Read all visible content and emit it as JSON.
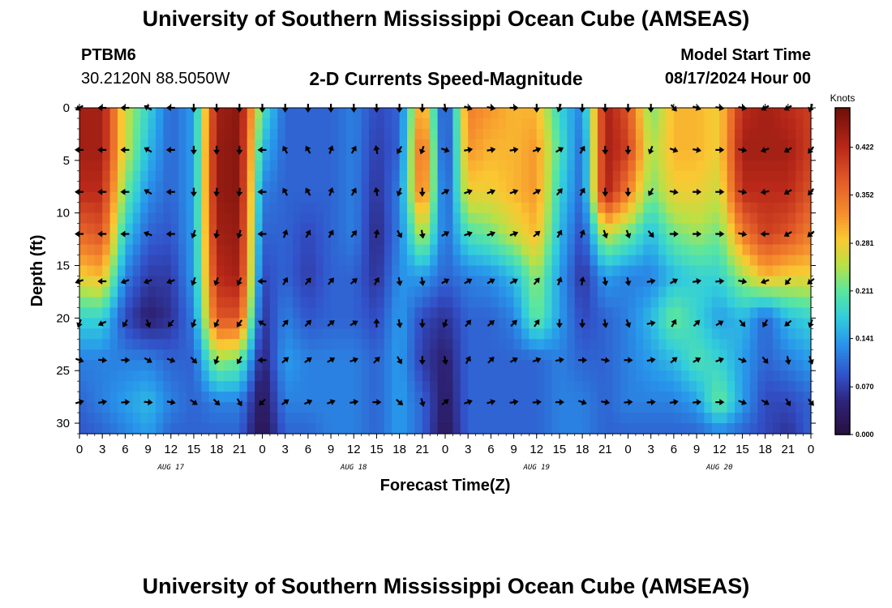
{
  "header": {
    "title": "University of Southern Mississippi Ocean Cube (AMSEAS)",
    "station_id": "PTBM6",
    "coordinates": "30.2120N  88.5050W",
    "chart_title": "2-D Currents Speed-Magnitude",
    "model_start_label": "Model Start Time",
    "model_start_value": "08/17/2024 Hour 00"
  },
  "footer": {
    "title": "University of Southern Mississippi Ocean Cube (AMSEAS)"
  },
  "chart_data": {
    "type": "heatmap",
    "title": "2-D Currents Speed-Magnitude",
    "xlabel": "Forecast Time(Z)",
    "ylabel": "Depth (ft)",
    "x_range_hours": [
      0,
      96
    ],
    "xlim": [
      0,
      96
    ],
    "ylim": [
      0,
      31
    ],
    "x_ticks_hours": [
      0,
      3,
      6,
      9,
      12,
      15,
      18,
      21,
      24,
      27,
      30,
      33,
      36,
      39,
      42,
      45,
      48,
      51,
      54,
      57,
      60,
      63,
      66,
      69,
      72,
      75,
      78,
      81,
      84,
      87,
      90,
      93,
      96
    ],
    "x_tick_labels": [
      "0",
      "3",
      "6",
      "9",
      "12",
      "15",
      "18",
      "21",
      "0",
      "3",
      "6",
      "9",
      "12",
      "15",
      "18",
      "21",
      "0",
      "3",
      "6",
      "9",
      "12",
      "15",
      "18",
      "21",
      "0",
      "3",
      "6",
      "9",
      "12",
      "15",
      "18",
      "21",
      "0"
    ],
    "day_labels": [
      {
        "label": "AUG 17",
        "hour": 12
      },
      {
        "label": "AUG 18",
        "hour": 36
      },
      {
        "label": "AUG 19",
        "hour": 60
      },
      {
        "label": "AUG 20",
        "hour": 84
      }
    ],
    "y_ticks": [
      0,
      5,
      10,
      15,
      20,
      25,
      30
    ],
    "colorbar": {
      "unit": "Knots",
      "min": 0.0,
      "max": 0.48,
      "ticks": [
        0.0,
        0.07,
        0.141,
        0.211,
        0.281,
        0.352,
        0.422
      ],
      "tick_labels": [
        "0.000",
        "0.070",
        "0.141",
        "0.211",
        "0.281",
        "0.352",
        "0.422"
      ]
    },
    "speed_profile": {
      "times_hours": [
        0,
        3,
        6,
        9,
        12,
        15,
        18,
        21,
        24,
        27,
        30,
        33,
        36,
        39,
        42,
        45,
        48,
        51,
        54,
        57,
        60,
        63,
        66,
        69,
        72,
        75,
        78,
        81,
        84,
        87,
        90,
        93,
        96
      ],
      "depths_ft": [
        0,
        4,
        8,
        12,
        16,
        20,
        24,
        28,
        31
      ],
      "knots": [
        [
          0.44,
          0.44,
          0.42,
          0.36,
          0.28,
          0.18,
          0.12,
          0.1,
          0.09
        ],
        [
          0.44,
          0.44,
          0.42,
          0.38,
          0.3,
          0.18,
          0.12,
          0.12,
          0.1
        ],
        [
          0.26,
          0.26,
          0.22,
          0.17,
          0.12,
          0.08,
          0.12,
          0.14,
          0.12
        ],
        [
          0.18,
          0.16,
          0.13,
          0.1,
          0.07,
          0.04,
          0.12,
          0.16,
          0.14
        ],
        [
          0.1,
          0.1,
          0.1,
          0.09,
          0.07,
          0.06,
          0.1,
          0.12,
          0.1
        ],
        [
          0.14,
          0.14,
          0.14,
          0.14,
          0.14,
          0.12,
          0.1,
          0.1,
          0.1
        ],
        [
          0.44,
          0.45,
          0.45,
          0.44,
          0.42,
          0.38,
          0.24,
          0.12,
          0.1
        ],
        [
          0.46,
          0.46,
          0.46,
          0.45,
          0.44,
          0.38,
          0.22,
          0.12,
          0.1
        ],
        [
          0.2,
          0.16,
          0.12,
          0.1,
          0.08,
          0.06,
          0.04,
          0.02,
          0.01
        ],
        [
          0.1,
          0.1,
          0.1,
          0.1,
          0.1,
          0.12,
          0.14,
          0.12,
          0.1
        ],
        [
          0.1,
          0.1,
          0.1,
          0.08,
          0.07,
          0.09,
          0.12,
          0.12,
          0.1
        ],
        [
          0.1,
          0.1,
          0.1,
          0.1,
          0.1,
          0.1,
          0.12,
          0.12,
          0.12
        ],
        [
          0.12,
          0.12,
          0.12,
          0.12,
          0.1,
          0.1,
          0.12,
          0.12,
          0.12
        ],
        [
          0.08,
          0.07,
          0.06,
          0.05,
          0.06,
          0.08,
          0.1,
          0.1,
          0.1
        ],
        [
          0.1,
          0.1,
          0.12,
          0.12,
          0.13,
          0.14,
          0.14,
          0.14,
          0.14
        ],
        [
          0.34,
          0.38,
          0.36,
          0.26,
          0.14,
          0.08,
          0.07,
          0.1,
          0.1
        ],
        [
          0.06,
          0.06,
          0.08,
          0.1,
          0.1,
          0.06,
          0.04,
          0.03,
          0.02
        ],
        [
          0.34,
          0.32,
          0.28,
          0.2,
          0.12,
          0.1,
          0.1,
          0.1,
          0.1
        ],
        [
          0.32,
          0.3,
          0.28,
          0.22,
          0.13,
          0.1,
          0.1,
          0.1,
          0.1
        ],
        [
          0.3,
          0.3,
          0.3,
          0.26,
          0.16,
          0.12,
          0.1,
          0.1,
          0.1
        ],
        [
          0.3,
          0.32,
          0.32,
          0.3,
          0.24,
          0.22,
          0.1,
          0.1,
          0.1
        ],
        [
          0.18,
          0.2,
          0.18,
          0.16,
          0.14,
          0.14,
          0.12,
          0.12,
          0.12
        ],
        [
          0.12,
          0.1,
          0.1,
          0.08,
          0.06,
          0.08,
          0.1,
          0.12,
          0.12
        ],
        [
          0.44,
          0.44,
          0.44,
          0.26,
          0.14,
          0.1,
          0.1,
          0.1,
          0.1
        ],
        [
          0.38,
          0.4,
          0.34,
          0.22,
          0.12,
          0.12,
          0.12,
          0.12,
          0.1
        ],
        [
          0.22,
          0.24,
          0.22,
          0.16,
          0.12,
          0.16,
          0.14,
          0.12,
          0.1
        ],
        [
          0.3,
          0.3,
          0.28,
          0.22,
          0.16,
          0.22,
          0.16,
          0.12,
          0.1
        ],
        [
          0.3,
          0.3,
          0.28,
          0.24,
          0.18,
          0.18,
          0.2,
          0.14,
          0.1
        ],
        [
          0.28,
          0.28,
          0.26,
          0.22,
          0.18,
          0.14,
          0.18,
          0.22,
          0.12
        ],
        [
          0.42,
          0.44,
          0.42,
          0.34,
          0.24,
          0.16,
          0.14,
          0.14,
          0.1
        ],
        [
          0.44,
          0.44,
          0.42,
          0.4,
          0.3,
          0.1,
          0.1,
          0.08,
          0.08
        ],
        [
          0.42,
          0.44,
          0.42,
          0.38,
          0.28,
          0.16,
          0.12,
          0.08,
          0.06
        ],
        [
          0.4,
          0.4,
          0.38,
          0.34,
          0.28,
          0.18,
          0.14,
          0.1,
          0.1
        ]
      ]
    },
    "current_vectors": {
      "times_hours": [
        0,
        3,
        6,
        9,
        12,
        15,
        18,
        21,
        24,
        27,
        30,
        33,
        36,
        39,
        42,
        45,
        48,
        51,
        54,
        57,
        60,
        63,
        66,
        69,
        72,
        75,
        78,
        81,
        84,
        87,
        90,
        93,
        96
      ],
      "depths_ft": [
        0,
        4,
        8,
        12,
        16.5,
        20.5,
        24,
        28
      ],
      "direction_deg_to": [
        [
          240,
          270,
          270,
          270,
          250,
          200,
          110,
          75
        ],
        [
          270,
          270,
          270,
          270,
          270,
          245,
          95,
          80
        ],
        [
          270,
          270,
          270,
          270,
          250,
          210,
          90,
          85
        ],
        [
          300,
          300,
          300,
          290,
          250,
          160,
          120,
          95
        ],
        [
          270,
          270,
          270,
          270,
          250,
          220,
          110,
          100
        ],
        [
          180,
          180,
          180,
          200,
          200,
          200,
          135,
          125
        ],
        [
          180,
          180,
          185,
          190,
          200,
          205,
          200,
          135
        ],
        [
          180,
          180,
          185,
          195,
          205,
          215,
          210,
          150
        ],
        [
          180,
          270,
          270,
          270,
          270,
          300,
          270,
          225
        ],
        [
          180,
          330,
          330,
          20,
          30,
          40,
          50,
          55
        ],
        [
          180,
          330,
          330,
          30,
          40,
          45,
          55,
          65
        ],
        [
          180,
          20,
          20,
          30,
          40,
          50,
          60,
          70
        ],
        [
          180,
          30,
          30,
          40,
          50,
          60,
          70,
          80
        ],
        [
          180,
          350,
          350,
          10,
          30,
          0,
          45,
          90
        ],
        [
          180,
          210,
          200,
          150,
          170,
          170,
          150,
          130
        ],
        [
          180,
          200,
          180,
          170,
          170,
          180,
          180,
          165
        ],
        [
          170,
          110,
          60,
          60,
          60,
          200,
          170,
          50
        ],
        [
          110,
          80,
          70,
          70,
          60,
          40,
          30,
          70
        ],
        [
          100,
          80,
          70,
          70,
          60,
          50,
          45,
          75
        ],
        [
          90,
          80,
          70,
          70,
          60,
          45,
          60,
          80
        ],
        [
          180,
          70,
          60,
          50,
          40,
          35,
          70,
          85
        ],
        [
          200,
          60,
          40,
          30,
          20,
          180,
          80,
          90
        ],
        [
          180,
          30,
          30,
          20,
          10,
          180,
          90,
          110
        ],
        [
          180,
          180,
          180,
          160,
          170,
          170,
          100,
          100
        ],
        [
          180,
          180,
          180,
          160,
          170,
          160,
          90,
          85
        ],
        [
          180,
          200,
          210,
          140,
          80,
          80,
          80,
          85
        ],
        [
          140,
          110,
          100,
          90,
          60,
          30,
          50,
          80
        ],
        [
          110,
          100,
          90,
          90,
          80,
          45,
          60,
          85
        ],
        [
          100,
          90,
          90,
          90,
          85,
          60,
          70,
          90
        ],
        [
          100,
          100,
          100,
          100,
          100,
          140,
          110,
          110
        ],
        [
          240,
          250,
          260,
          270,
          250,
          210,
          140,
          120
        ],
        [
          240,
          240,
          240,
          240,
          220,
          230,
          170,
          150
        ],
        [
          200,
          220,
          220,
          230,
          230,
          200,
          160,
          140
        ]
      ]
    }
  }
}
